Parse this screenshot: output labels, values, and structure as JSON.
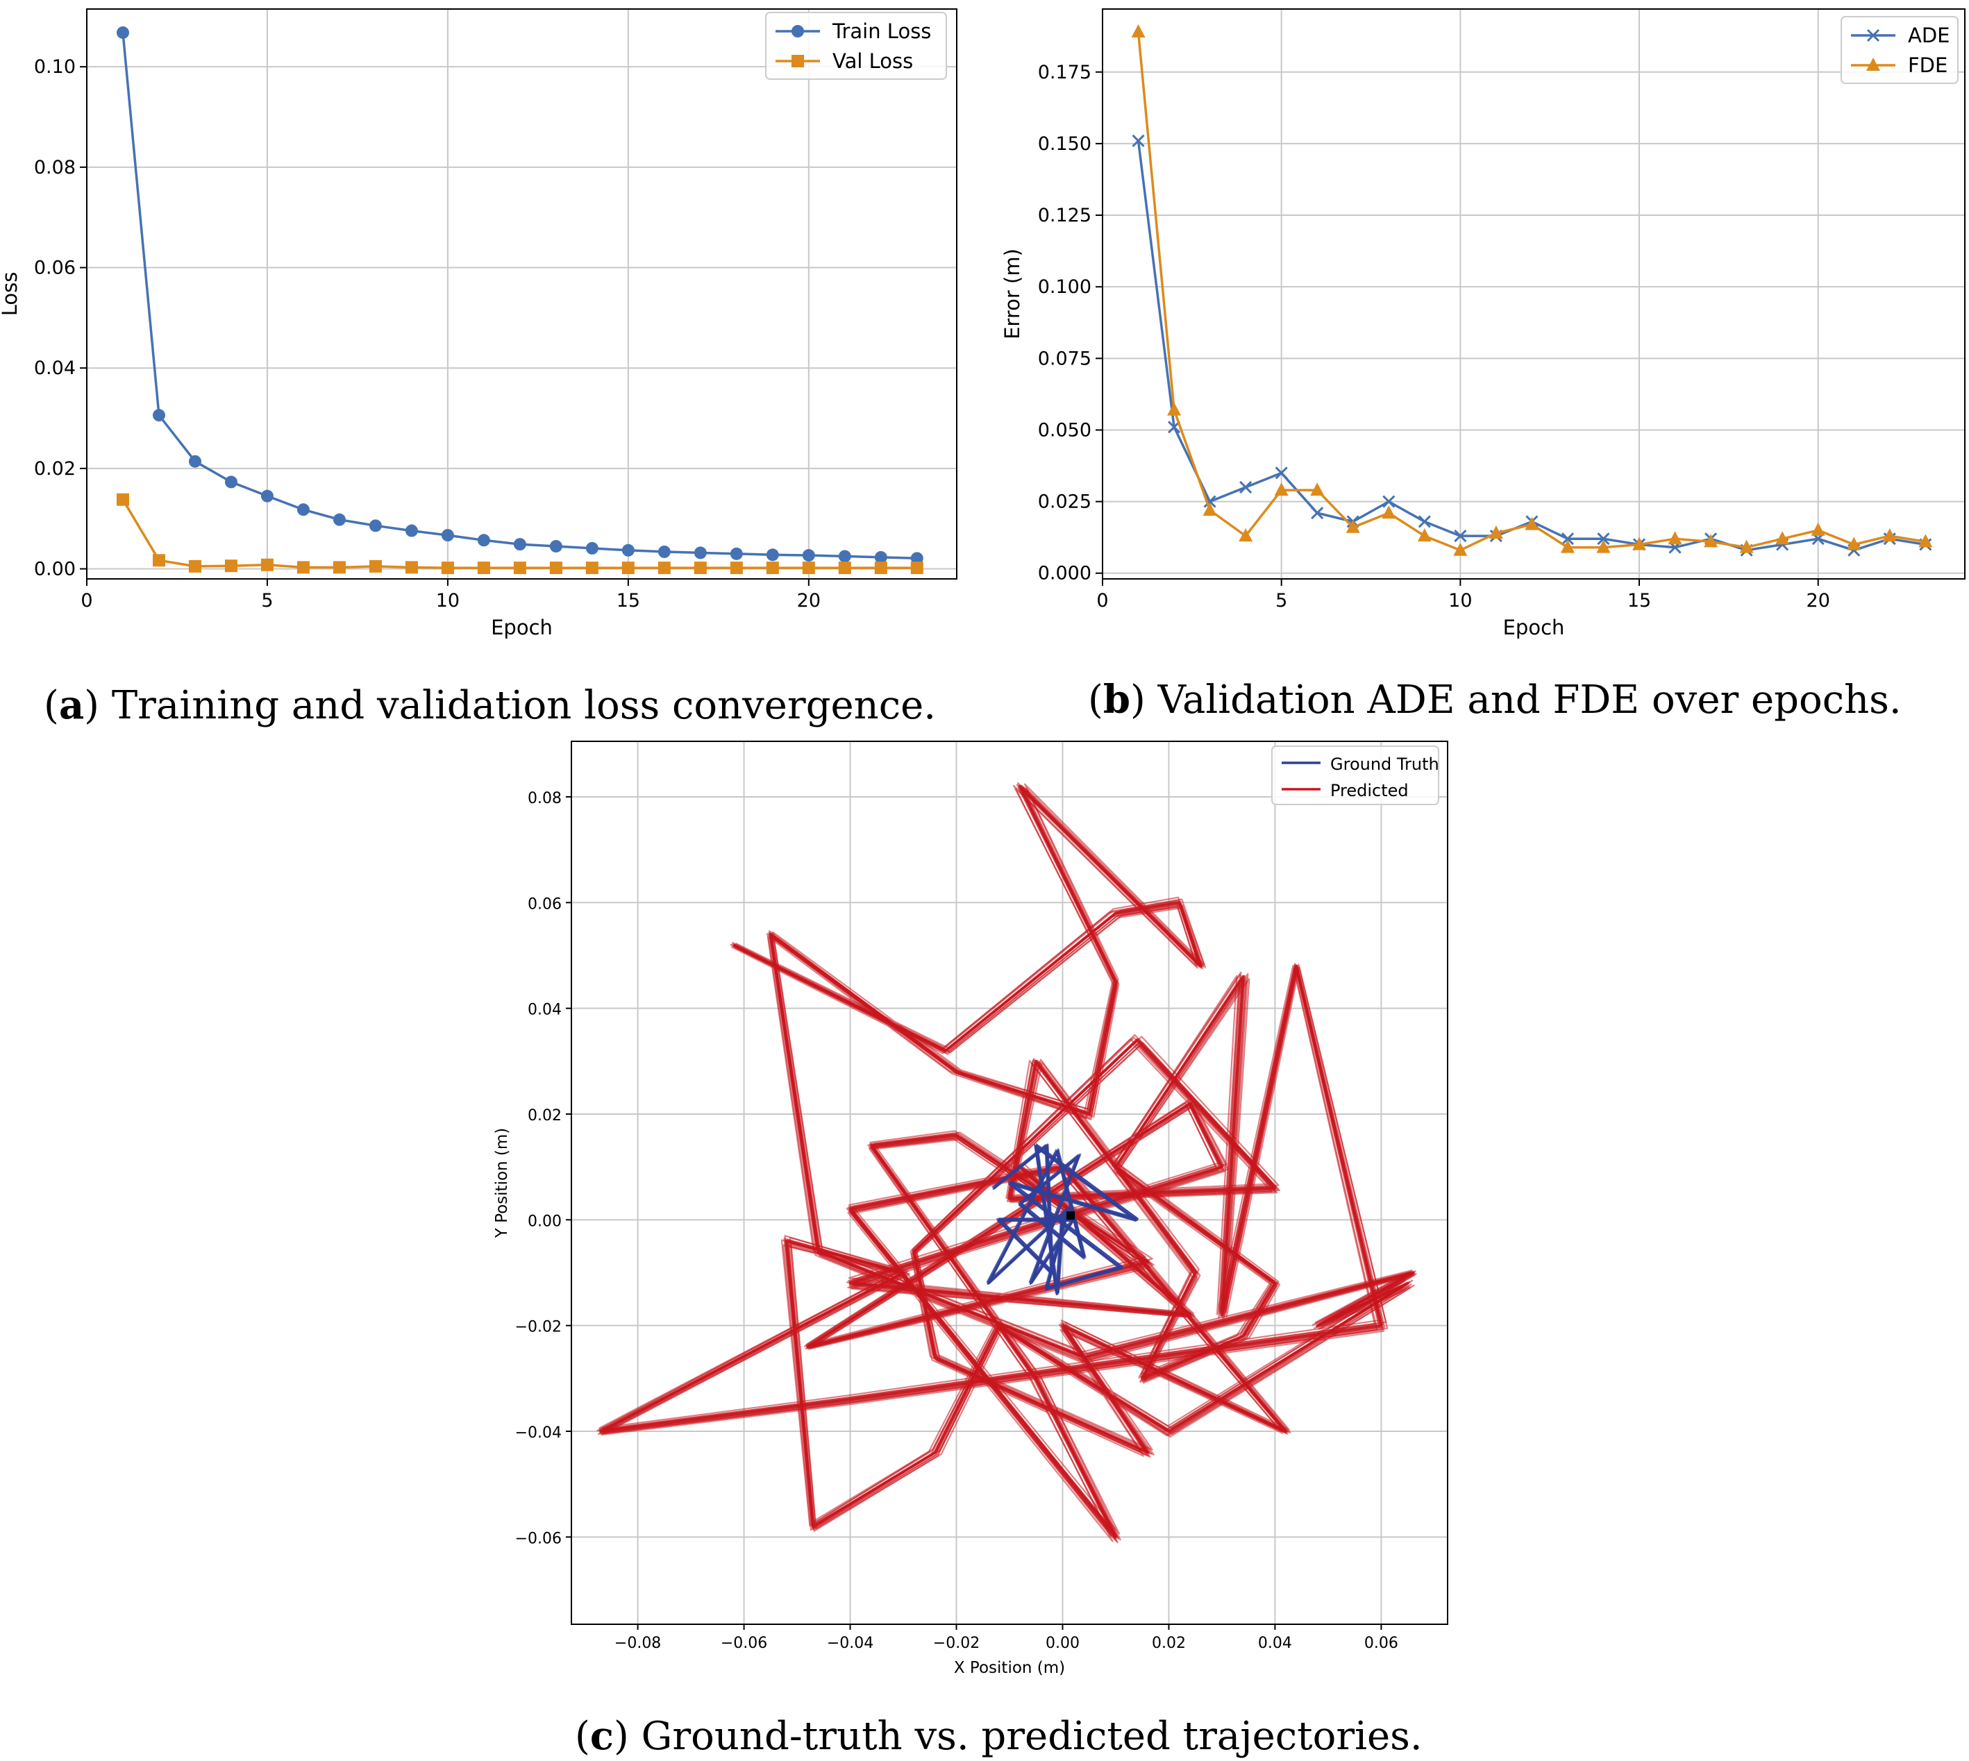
{
  "captions": {
    "a": {
      "letter": "a",
      "text": "Training and validation loss convergence."
    },
    "b": {
      "letter": "b",
      "text": "Validation ADE and FDE over epochs."
    },
    "c": {
      "letter": "c",
      "text": "Ground-truth vs. predicted trajectories."
    }
  },
  "colors": {
    "blue": "#4572b4",
    "orange": "#dd8a1c",
    "gt_blue": "#2f3f9a",
    "pred_red": "#c8161d",
    "grid": "#c8c8c8"
  },
  "chart_data": [
    {
      "id": "a",
      "type": "line",
      "xlabel": "Epoch",
      "ylabel": "Loss",
      "xlim": [
        0,
        24.1
      ],
      "ylim": [
        -0.002,
        0.1115
      ],
      "xticks": [
        0,
        5,
        10,
        15,
        20
      ],
      "yticks": [
        0.0,
        0.02,
        0.04,
        0.06,
        0.08,
        0.1
      ],
      "yticklabels": [
        "0.00",
        "0.02",
        "0.04",
        "0.06",
        "0.08",
        "0.10"
      ],
      "grid": true,
      "legend_position": "top-right",
      "x": [
        1,
        2,
        3,
        4,
        5,
        6,
        7,
        8,
        9,
        10,
        11,
        12,
        13,
        14,
        15,
        16,
        17,
        18,
        19,
        20,
        21,
        22,
        23
      ],
      "series": [
        {
          "name": "Train Loss",
          "marker": "circle",
          "color": "#4572b4",
          "values": [
            0.1068,
            0.0306,
            0.0214,
            0.0173,
            0.0145,
            0.0118,
            0.0098,
            0.0086,
            0.0076,
            0.0067,
            0.0057,
            0.0049,
            0.0045,
            0.0041,
            0.0037,
            0.0034,
            0.0032,
            0.003,
            0.0028,
            0.0027,
            0.0025,
            0.0023,
            0.0021
          ]
        },
        {
          "name": "Val Loss",
          "marker": "square",
          "color": "#dd8a1c",
          "values": [
            0.0138,
            0.0017,
            0.0005,
            0.0006,
            0.0008,
            0.0003,
            0.0003,
            0.0005,
            0.0003,
            0.0002,
            0.0002,
            0.0002,
            0.0002,
            0.0002,
            0.0002,
            0.0002,
            0.0002,
            0.0002,
            0.0002,
            0.0002,
            0.0002,
            0.0002,
            0.0002
          ]
        }
      ]
    },
    {
      "id": "b",
      "type": "line",
      "xlabel": "Epoch",
      "ylabel": "Error (m)",
      "xlim": [
        0,
        24.1
      ],
      "ylim": [
        -0.002,
        0.197
      ],
      "xticks": [
        0,
        5,
        10,
        15,
        20
      ],
      "yticks": [
        0.0,
        0.025,
        0.05,
        0.075,
        0.1,
        0.125,
        0.15,
        0.175
      ],
      "yticklabels": [
        "0.000",
        "0.025",
        "0.050",
        "0.075",
        "0.100",
        "0.125",
        "0.150",
        "0.175"
      ],
      "grid": true,
      "legend_position": "top-right",
      "x": [
        1,
        2,
        3,
        4,
        5,
        6,
        7,
        8,
        9,
        10,
        11,
        12,
        13,
        14,
        15,
        16,
        17,
        18,
        19,
        20,
        21,
        22,
        23
      ],
      "series": [
        {
          "name": "ADE",
          "marker": "x",
          "color": "#4572b4",
          "values": [
            0.151,
            0.051,
            0.025,
            0.03,
            0.035,
            0.021,
            0.018,
            0.025,
            0.018,
            0.013,
            0.013,
            0.018,
            0.012,
            0.012,
            0.01,
            0.009,
            0.012,
            0.008,
            0.01,
            0.012,
            0.008,
            0.012,
            0.01
          ]
        },
        {
          "name": "FDE",
          "marker": "triangle",
          "color": "#dd8a1c",
          "values": [
            0.189,
            0.057,
            0.022,
            0.013,
            0.029,
            0.029,
            0.016,
            0.021,
            0.013,
            0.008,
            0.014,
            0.017,
            0.009,
            0.009,
            0.01,
            0.012,
            0.011,
            0.009,
            0.012,
            0.015,
            0.01,
            0.013,
            0.011
          ]
        }
      ]
    },
    {
      "id": "c",
      "type": "line",
      "xlabel": "X Position (m)",
      "ylabel": "Y Position (m)",
      "xlim": [
        -0.0925,
        0.0725
      ],
      "ylim": [
        -0.0765,
        0.0905
      ],
      "xticks": [
        -0.08,
        -0.06,
        -0.04,
        -0.02,
        0.0,
        0.02,
        0.04,
        0.06
      ],
      "xticklabels": [
        "−0.08",
        "−0.06",
        "−0.04",
        "−0.02",
        "0.00",
        "0.02",
        "0.04",
        "0.06"
      ],
      "yticks": [
        -0.06,
        -0.04,
        -0.02,
        0.0,
        0.02,
        0.04,
        0.06,
        0.08
      ],
      "yticklabels": [
        "−0.06",
        "−0.04",
        "−0.02",
        "0.00",
        "0.02",
        "0.04",
        "0.06",
        "0.08"
      ],
      "grid": true,
      "legend_position": "top-right",
      "series": [
        {
          "name": "Ground Truth",
          "color": "#2f3f9a",
          "points": [
            [
              -0.013,
              0.006
            ],
            [
              -0.003,
              0.014
            ],
            [
              -0.002,
              -0.01
            ],
            [
              -0.012,
              0.0
            ],
            [
              0.002,
              0.0
            ],
            [
              -0.006,
              -0.012
            ],
            [
              0.003,
              0.012
            ],
            [
              -0.008,
              0.003
            ],
            [
              0.004,
              -0.007
            ],
            [
              -0.001,
              0.013
            ],
            [
              -0.014,
              -0.012
            ],
            [
              0.001,
              0.002
            ],
            [
              -0.003,
              -0.013
            ],
            [
              0.011,
              -0.009
            ],
            [
              -0.01,
              0.007
            ],
            [
              0.014,
              0.0
            ],
            [
              -0.005,
              0.014
            ],
            [
              -0.001,
              -0.014
            ],
            [
              0.0,
              0.001
            ]
          ]
        },
        {
          "name": "Predicted",
          "color": "#c8161d",
          "points": [
            [
              -0.062,
              0.052
            ],
            [
              -0.022,
              0.032
            ],
            [
              0.01,
              0.058
            ],
            [
              0.022,
              0.06
            ],
            [
              0.026,
              0.048
            ],
            [
              -0.008,
              0.082
            ],
            [
              0.01,
              0.045
            ],
            [
              0.005,
              0.02
            ],
            [
              -0.02,
              0.028
            ],
            [
              -0.055,
              0.054
            ],
            [
              -0.046,
              -0.006
            ],
            [
              0.004,
              -0.026
            ],
            [
              0.066,
              -0.01
            ],
            [
              0.048,
              -0.02
            ],
            [
              0.065,
              -0.012
            ],
            [
              0.02,
              -0.04
            ],
            [
              -0.012,
              -0.02
            ],
            [
              -0.024,
              -0.044
            ],
            [
              -0.047,
              -0.058
            ],
            [
              -0.052,
              -0.004
            ],
            [
              -0.03,
              -0.01
            ],
            [
              -0.087,
              -0.04
            ],
            [
              -0.04,
              -0.034
            ],
            [
              0.06,
              -0.02
            ],
            [
              0.044,
              0.048
            ],
            [
              0.03,
              -0.018
            ],
            [
              0.034,
              0.046
            ],
            [
              0.01,
              0.01
            ],
            [
              0.04,
              -0.012
            ],
            [
              0.034,
              -0.022
            ],
            [
              0.015,
              -0.03
            ],
            [
              0.025,
              -0.01
            ],
            [
              -0.005,
              0.03
            ],
            [
              -0.01,
              0.004
            ],
            [
              0.04,
              0.006
            ],
            [
              0.014,
              0.034
            ],
            [
              -0.028,
              -0.006
            ],
            [
              -0.024,
              -0.026
            ],
            [
              0.016,
              -0.044
            ],
            [
              0.0,
              -0.02
            ],
            [
              0.042,
              -0.04
            ],
            [
              0.0,
              0.01
            ],
            [
              -0.04,
              0.002
            ],
            [
              0.01,
              -0.06
            ],
            [
              -0.005,
              -0.03
            ],
            [
              -0.036,
              0.014
            ],
            [
              -0.02,
              0.016
            ],
            [
              0.016,
              -0.008
            ],
            [
              -0.048,
              -0.024
            ],
            [
              0.024,
              0.022
            ],
            [
              0.03,
              0.01
            ],
            [
              -0.04,
              -0.012
            ],
            [
              0.024,
              -0.018
            ],
            [
              -0.008,
              0.01
            ]
          ]
        }
      ]
    }
  ]
}
